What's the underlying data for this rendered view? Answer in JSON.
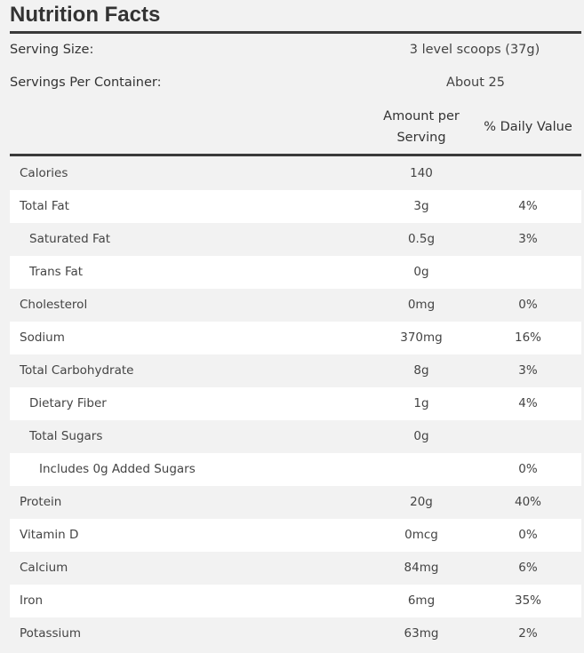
{
  "title": "Nutrition Facts",
  "serving_size": {
    "label": "Serving Size:",
    "value": "3 level scoops (37g)"
  },
  "servings_per_container": {
    "label": "Servings Per Container:",
    "value": "About 25"
  },
  "headers": {
    "amount_line1": "Amount per",
    "amount_line2": "Serving",
    "daily_value": "% Daily Value"
  },
  "rows": [
    {
      "name": "Calories",
      "amount": "140",
      "dv": "",
      "level": 0
    },
    {
      "name": "Total Fat",
      "amount": "3g",
      "dv": "4%",
      "level": 0
    },
    {
      "name": "Saturated Fat",
      "amount": "0.5g",
      "dv": "3%",
      "level": 1
    },
    {
      "name": "Trans Fat",
      "amount": "0g",
      "dv": "",
      "level": 1
    },
    {
      "name": "Cholesterol",
      "amount": "0mg",
      "dv": "0%",
      "level": 0
    },
    {
      "name": "Sodium",
      "amount": "370mg",
      "dv": "16%",
      "level": 0
    },
    {
      "name": "Total Carbohydrate",
      "amount": "8g",
      "dv": "3%",
      "level": 0
    },
    {
      "name": "Dietary Fiber",
      "amount": "1g",
      "dv": "4%",
      "level": 1
    },
    {
      "name": "Total Sugars",
      "amount": "0g",
      "dv": "",
      "level": 1
    },
    {
      "name": "Includes 0g Added Sugars",
      "amount": "",
      "dv": "0%",
      "level": 2
    },
    {
      "name": "Protein",
      "amount": "20g",
      "dv": "40%",
      "level": 0
    },
    {
      "name": "Vitamin D",
      "amount": "0mcg",
      "dv": "0%",
      "level": 0
    },
    {
      "name": "Calcium",
      "amount": "84mg",
      "dv": "6%",
      "level": 0
    },
    {
      "name": "Iron",
      "amount": "6mg",
      "dv": "35%",
      "level": 0
    },
    {
      "name": "Potassium",
      "amount": "63mg",
      "dv": "2%",
      "level": 0
    }
  ]
}
